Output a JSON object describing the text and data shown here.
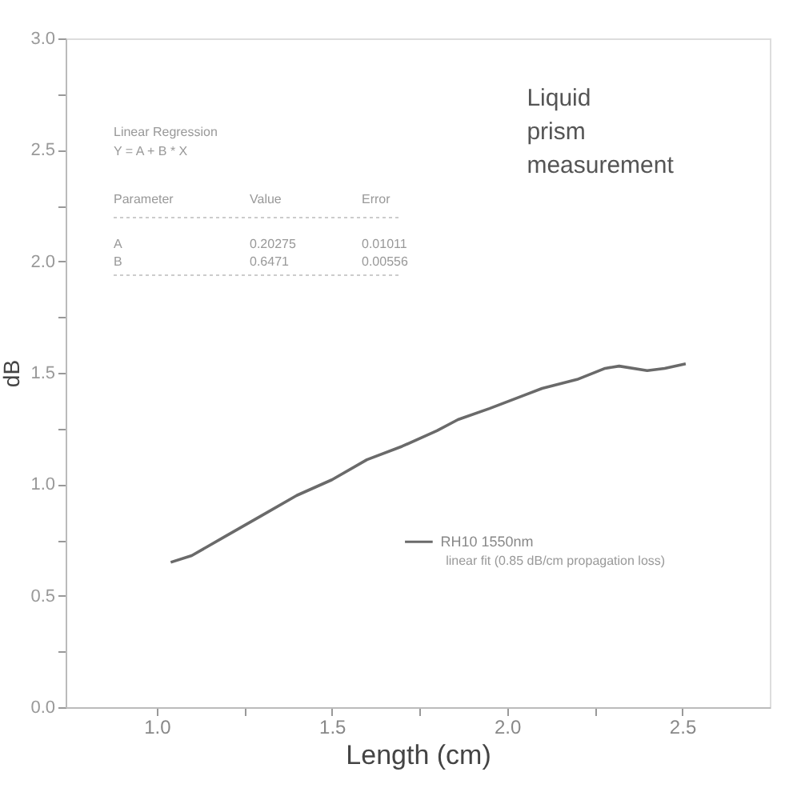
{
  "chart_data": {
    "type": "line",
    "xlabel": "Length (cm)",
    "ylabel": "dB",
    "x": [
      1.04,
      1.1,
      1.2,
      1.3,
      1.4,
      1.5,
      1.6,
      1.7,
      1.8,
      1.86,
      1.95,
      2.05,
      2.1,
      2.2,
      2.28,
      2.32,
      2.4,
      2.45,
      2.51
    ],
    "series": [
      {
        "name": "RH10 1550nm",
        "color": "#6a6a6a",
        "values": [
          0.65,
          0.68,
          0.77,
          0.86,
          0.95,
          1.02,
          1.11,
          1.17,
          1.24,
          1.29,
          1.34,
          1.4,
          1.43,
          1.47,
          1.52,
          1.53,
          1.51,
          1.52,
          1.54
        ]
      }
    ],
    "xlim": [
      0.74,
      2.75
    ],
    "ylim": [
      0,
      3.0
    ],
    "xticks": [
      {
        "value": 1,
        "label": "1.0"
      },
      {
        "value": 1.25,
        "label": null
      },
      1.5,
      {
        "value": 1.75,
        "label": null
      },
      {
        "value": 2,
        "label": "2.0"
      },
      {
        "value": 2.25,
        "label": null
      },
      2.5
    ],
    "yticks": [
      {
        "value": 0,
        "label": "0.0"
      },
      {
        "value": 0.25,
        "label": null
      },
      0.5,
      {
        "value": 0.75,
        "label": null
      },
      {
        "value": 1,
        "label": "1.0"
      },
      {
        "value": 1.25,
        "label": null
      },
      1.5,
      {
        "value": 1.75,
        "label": null
      },
      {
        "value": 2,
        "label": "2.0"
      },
      {
        "value": 2.25,
        "label": null
      },
      2.5,
      {
        "value": 2.75,
        "label": null
      },
      {
        "value": 3,
        "label": "3.0"
      }
    ],
    "legend": "bottom right",
    "grid": false,
    "annotations": [
      "Liquid prism measurement",
      "linear fit (0.85 dB/cm propagation loss)",
      "Linear Regression",
      "Y = A + B * X",
      "Parameter",
      "Value",
      "Error",
      "A",
      "0.20275",
      "0.01011",
      "B",
      "0.6471",
      "0.00556"
    ]
  }
}
